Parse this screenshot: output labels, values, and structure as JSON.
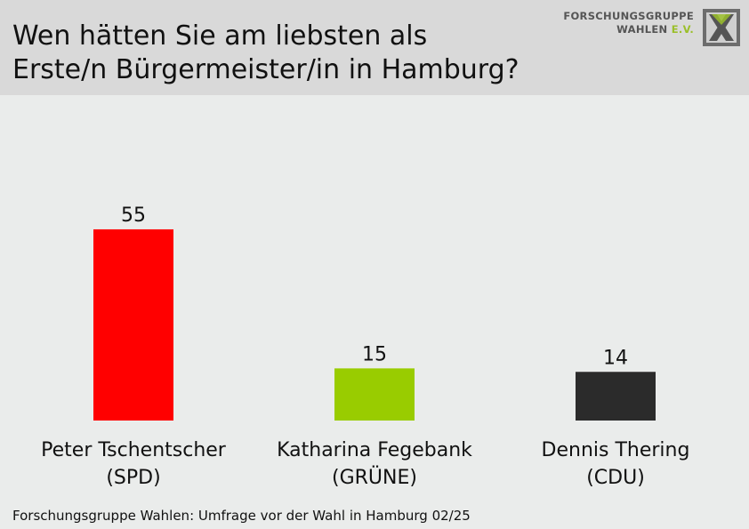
{
  "header": {
    "title_line1": "Wen hätten Sie am liebsten als",
    "title_line2": "Erste/n Bürgermeister/in in Hamburg?"
  },
  "logo": {
    "line1": "FORSCHUNGSGRUPPE",
    "line2_a": "WAHLEN",
    "line2_b": "E.V."
  },
  "chart_data": {
    "type": "bar",
    "categories": [
      [
        "Peter Tschentscher",
        "(SPD)"
      ],
      [
        "Katharina Fegebank",
        "(GRÜNE)"
      ],
      [
        "Dennis Thering",
        "(CDU)"
      ]
    ],
    "values": [
      55,
      15,
      14
    ],
    "colors": [
      "#ff0000",
      "#99cc00",
      "#2b2b2b"
    ],
    "ylim": [
      0,
      60
    ],
    "grid": false,
    "legend": "none"
  },
  "footer": {
    "source": "Forschungsgruppe Wahlen: Umfrage vor der Wahl in Hamburg 02/25"
  }
}
